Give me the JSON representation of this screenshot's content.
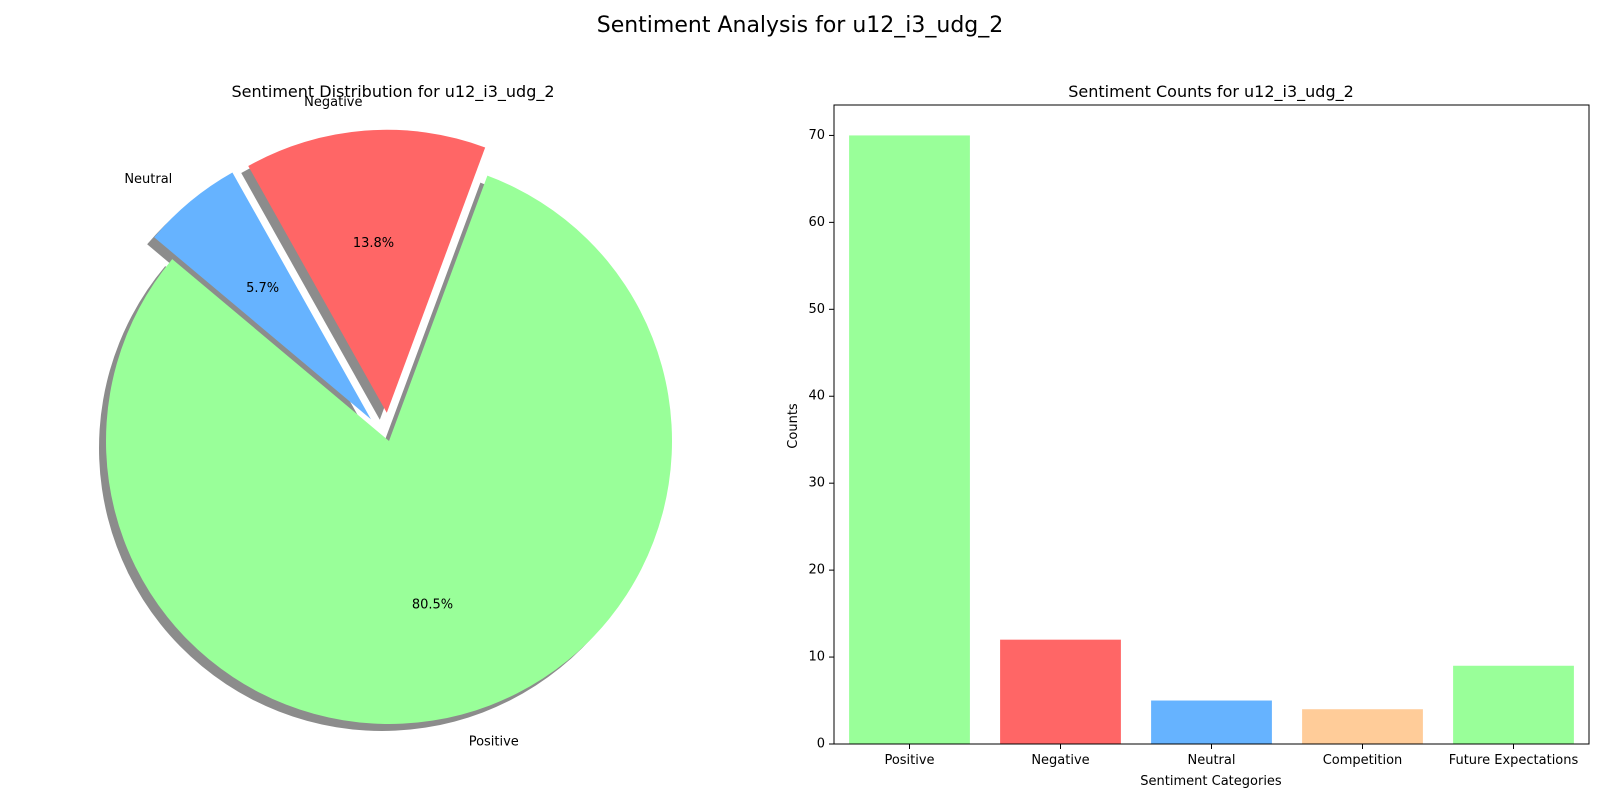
{
  "suptitle": "Sentiment Analysis for u12_i3_udg_2",
  "chart_data": [
    {
      "type": "pie",
      "title": "Sentiment Distribution for u12_i3_udg_2",
      "labels": [
        "Positive",
        "Negative",
        "Neutral"
      ],
      "values": [
        70,
        12,
        5
      ],
      "percent_labels": [
        "80.5%",
        "13.8%",
        "5.7%"
      ],
      "colors": [
        "#99ff99",
        "#ff6666",
        "#66b3ff"
      ],
      "explode": [
        0,
        0.1,
        0.1
      ],
      "startangle": 140,
      "shadow": true
    },
    {
      "type": "bar",
      "title": "Sentiment Counts for u12_i3_udg_2",
      "categories": [
        "Positive",
        "Negative",
        "Neutral",
        "Competition",
        "Future Expectations"
      ],
      "values": [
        70,
        12,
        5,
        4,
        9
      ],
      "colors": [
        "#99ff99",
        "#ff6666",
        "#66b3ff",
        "#ffcc99",
        "#99ff99"
      ],
      "xlabel": "Sentiment Categories",
      "ylabel": "Counts",
      "ylim": [
        0,
        73.5
      ],
      "yticks": [
        0,
        10,
        20,
        30,
        40,
        50,
        60,
        70
      ],
      "grid": false
    }
  ]
}
